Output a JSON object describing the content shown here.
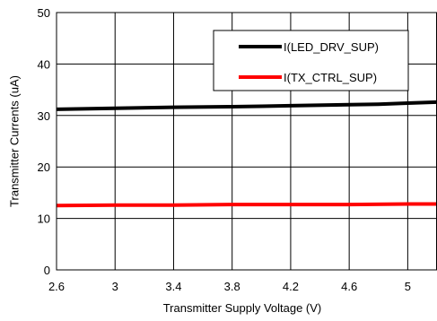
{
  "chart_data": {
    "type": "line",
    "xlabel": "Transmitter Supply Voltage (V)",
    "ylabel": "Transmitter Currents (uA)",
    "xlim": [
      2.6,
      5.2
    ],
    "ylim": [
      0,
      50
    ],
    "x_ticks": [
      2.6,
      3,
      3.4,
      3.8,
      4.2,
      4.6,
      5
    ],
    "x_tick_labels": [
      "2.6",
      "3",
      "3.4",
      "3.8",
      "4.2",
      "4.6",
      "5"
    ],
    "y_ticks": [
      0,
      10,
      20,
      30,
      40,
      50
    ],
    "y_tick_labels": [
      "0",
      "10",
      "20",
      "30",
      "40",
      "50"
    ],
    "grid": true,
    "legend_position": "top-right",
    "series": [
      {
        "name": "I(LED_DRV_SUP)",
        "color": "#000000",
        "x": [
          2.6,
          3.0,
          3.4,
          3.8,
          4.0,
          4.2,
          4.6,
          4.8,
          5.0,
          5.2
        ],
        "y": [
          31.2,
          31.4,
          31.6,
          31.7,
          31.8,
          31.9,
          32.1,
          32.2,
          32.4,
          32.6
        ]
      },
      {
        "name": "I(TX_CTRL_SUP)",
        "color": "#ff0000",
        "x": [
          2.6,
          3.0,
          3.4,
          3.8,
          4.2,
          4.6,
          5.0,
          5.2
        ],
        "y": [
          12.5,
          12.6,
          12.6,
          12.7,
          12.7,
          12.7,
          12.8,
          12.8
        ]
      }
    ]
  }
}
